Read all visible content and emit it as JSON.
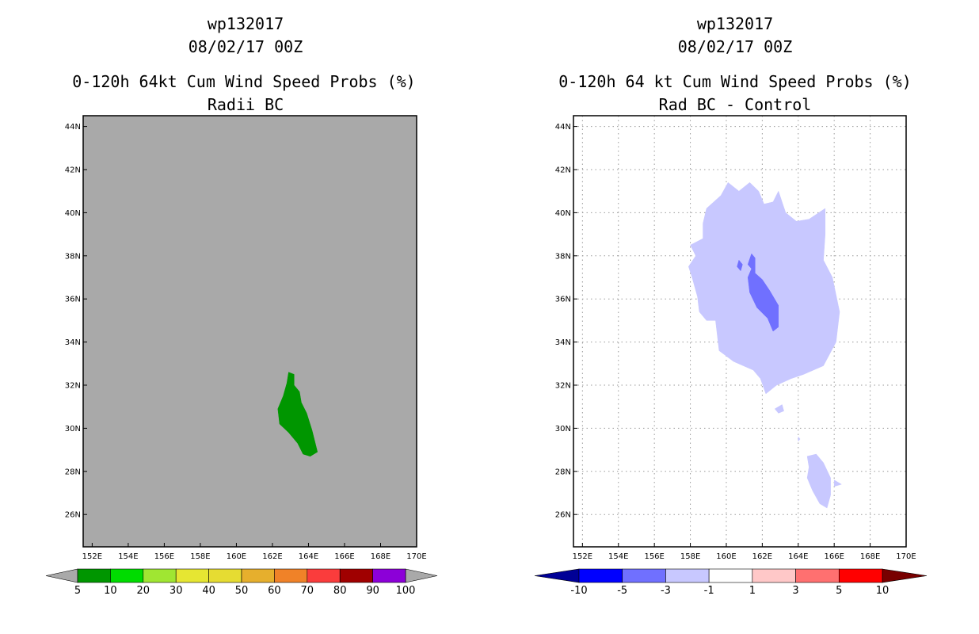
{
  "chart_data": [
    {
      "type": "heatmap",
      "storm_id": "wp132017",
      "datetime": "08/02/17 00Z",
      "title": "0-120h 64kt Cum Wind Speed Probs (%)",
      "subtitle": "Radii BC",
      "x_ticks": [
        "152E",
        "154E",
        "156E",
        "158E",
        "160E",
        "162E",
        "164E",
        "166E",
        "168E",
        "170E"
      ],
      "y_ticks": [
        "26N",
        "28N",
        "30N",
        "32N",
        "34N",
        "36N",
        "38N",
        "40N",
        "42N",
        "44N"
      ],
      "xlim": [
        151.5,
        170
      ],
      "ylim": [
        24.5,
        44.5
      ],
      "grid": false,
      "background_color": "#a9a9a9",
      "colorbar": {
        "labels": [
          "5",
          "10",
          "20",
          "30",
          "40",
          "50",
          "60",
          "70",
          "80",
          "90",
          "100"
        ],
        "colors": [
          "#009600",
          "#00dc00",
          "#a0e632",
          "#e6e632",
          "#e6dc32",
          "#e6af2d",
          "#f08228",
          "#fa3c3c",
          "#a00000",
          "#8c00d8"
        ],
        "end_color": "#a9a9a9"
      },
      "regions": [
        {
          "level": "5-10",
          "color": "#009600",
          "points": [
            [
              162.9,
              32.6
            ],
            [
              163.2,
              32.5
            ],
            [
              163.2,
              32.0
            ],
            [
              163.5,
              31.7
            ],
            [
              163.6,
              31.2
            ],
            [
              163.9,
              30.7
            ],
            [
              164.2,
              29.9
            ],
            [
              164.5,
              28.9
            ],
            [
              164.1,
              28.7
            ],
            [
              163.7,
              28.8
            ],
            [
              163.4,
              29.3
            ],
            [
              162.9,
              29.8
            ],
            [
              162.4,
              30.2
            ],
            [
              162.3,
              30.9
            ],
            [
              162.6,
              31.5
            ],
            [
              162.8,
              32.1
            ]
          ]
        }
      ]
    },
    {
      "type": "heatmap",
      "storm_id": "wp132017",
      "datetime": "08/02/17 00Z",
      "title": "0-120h 64 kt Cum Wind Speed Probs (%)",
      "subtitle": "Rad BC - Control",
      "x_ticks": [
        "152E",
        "154E",
        "156E",
        "158E",
        "160E",
        "162E",
        "164E",
        "166E",
        "168E",
        "170E"
      ],
      "y_ticks": [
        "26N",
        "28N",
        "30N",
        "32N",
        "34N",
        "36N",
        "38N",
        "40N",
        "42N",
        "44N"
      ],
      "xlim": [
        151.5,
        170
      ],
      "ylim": [
        24.5,
        44.5
      ],
      "grid": true,
      "background_color": "#ffffff",
      "colorbar": {
        "labels": [
          "-10",
          "-5",
          "-3",
          "-1",
          "1",
          "3",
          "5",
          "10"
        ],
        "colors": [
          "#0000ff",
          "#7070ff",
          "#c8c8ff",
          "#ffffff",
          "#ffc8c8",
          "#ff7070",
          "#ff0000"
        ],
        "end_left_color": "#000096",
        "end_right_color": "#780000"
      },
      "regions": [
        {
          "level": "-3 to -1",
          "color": "#c8c8ff",
          "points": [
            [
              158.9,
              40.2
            ],
            [
              159.7,
              40.8
            ],
            [
              160.1,
              41.4
            ],
            [
              160.7,
              41.0
            ],
            [
              161.3,
              41.4
            ],
            [
              161.8,
              41.0
            ],
            [
              162.1,
              40.4
            ],
            [
              162.6,
              40.5
            ],
            [
              162.9,
              41.0
            ],
            [
              163.3,
              40.0
            ],
            [
              163.9,
              39.6
            ],
            [
              164.6,
              39.7
            ],
            [
              165.5,
              40.2
            ],
            [
              165.5,
              39.0
            ],
            [
              165.4,
              37.8
            ],
            [
              165.9,
              37.0
            ],
            [
              166.3,
              35.4
            ],
            [
              166.1,
              34.0
            ],
            [
              165.4,
              32.9
            ],
            [
              164.3,
              32.5
            ],
            [
              163.6,
              32.3
            ],
            [
              162.8,
              32.0
            ],
            [
              162.2,
              31.6
            ],
            [
              161.9,
              32.3
            ],
            [
              161.5,
              32.7
            ],
            [
              160.4,
              33.1
            ],
            [
              159.6,
              33.6
            ],
            [
              159.4,
              35.0
            ],
            [
              158.9,
              35.0
            ],
            [
              158.5,
              35.4
            ],
            [
              158.4,
              36.1
            ],
            [
              158.1,
              37.0
            ],
            [
              157.9,
              37.5
            ],
            [
              158.3,
              38.0
            ],
            [
              158.0,
              38.5
            ],
            [
              158.7,
              38.8
            ],
            [
              158.7,
              39.5
            ]
          ]
        },
        {
          "level": "-3 to -1",
          "color": "#c8c8ff",
          "points": [
            [
              162.7,
              30.9
            ],
            [
              163.1,
              31.1
            ],
            [
              163.2,
              30.8
            ],
            [
              162.9,
              30.7
            ]
          ]
        },
        {
          "level": "-3 to -1",
          "color": "#c8c8ff",
          "points": [
            [
              164.5,
              28.7
            ],
            [
              165.0,
              28.8
            ],
            [
              165.4,
              28.4
            ],
            [
              165.8,
              27.7
            ],
            [
              165.8,
              26.9
            ],
            [
              165.6,
              26.3
            ],
            [
              165.2,
              26.5
            ],
            [
              164.8,
              27.1
            ],
            [
              164.5,
              27.7
            ],
            [
              164.6,
              28.2
            ]
          ]
        },
        {
          "level": "-3 to -1",
          "color": "#c8c8ff",
          "points": [
            [
              166.0,
              27.6
            ],
            [
              166.4,
              27.4
            ],
            [
              166.0,
              27.3
            ]
          ]
        },
        {
          "level": "-3 to -1",
          "color": "#c8c8ff",
          "points": [
            [
              164.0,
              29.6
            ],
            [
              164.1,
              29.5
            ],
            [
              164.0,
              29.4
            ]
          ]
        },
        {
          "level": "-5 to -3",
          "color": "#7070ff",
          "points": [
            [
              161.4,
              38.1
            ],
            [
              161.6,
              37.9
            ],
            [
              161.6,
              37.2
            ],
            [
              162.0,
              36.9
            ],
            [
              162.4,
              36.4
            ],
            [
              162.9,
              35.7
            ],
            [
              162.9,
              34.7
            ],
            [
              162.6,
              34.5
            ],
            [
              162.3,
              35.1
            ],
            [
              161.7,
              35.6
            ],
            [
              161.3,
              36.3
            ],
            [
              161.2,
              37.0
            ],
            [
              161.4,
              37.4
            ],
            [
              161.2,
              37.6
            ]
          ]
        },
        {
          "level": "-5 to -3",
          "color": "#7070ff",
          "points": [
            [
              160.7,
              37.8
            ],
            [
              160.9,
              37.6
            ],
            [
              160.8,
              37.3
            ],
            [
              160.6,
              37.5
            ]
          ]
        }
      ]
    }
  ]
}
